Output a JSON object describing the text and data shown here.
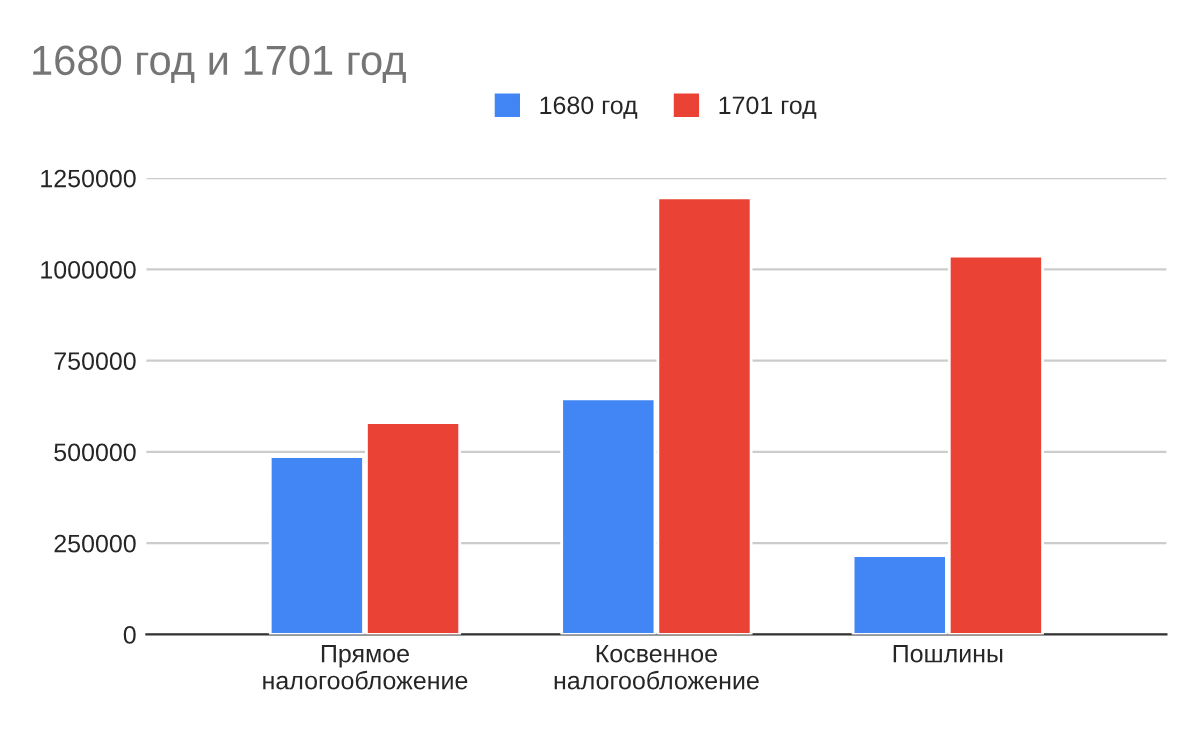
{
  "chart_data": {
    "type": "bar",
    "title": "1680 год и 1701 год",
    "categories": [
      "Прямое\nналогообложение",
      "Косвенное\nналогообложение",
      "Пошлины"
    ],
    "series": [
      {
        "name": "1680 год",
        "color": "#4285f4",
        "values": [
          487000,
          645000,
          216000
        ]
      },
      {
        "name": "1701 год",
        "color": "#ea4335",
        "values": [
          580000,
          1196000,
          1036000
        ]
      }
    ],
    "ylim": [
      0,
      1250000
    ],
    "yticks": [
      0,
      250000,
      500000,
      750000,
      1000000,
      1250000
    ],
    "grid": "y",
    "legend": "top"
  }
}
